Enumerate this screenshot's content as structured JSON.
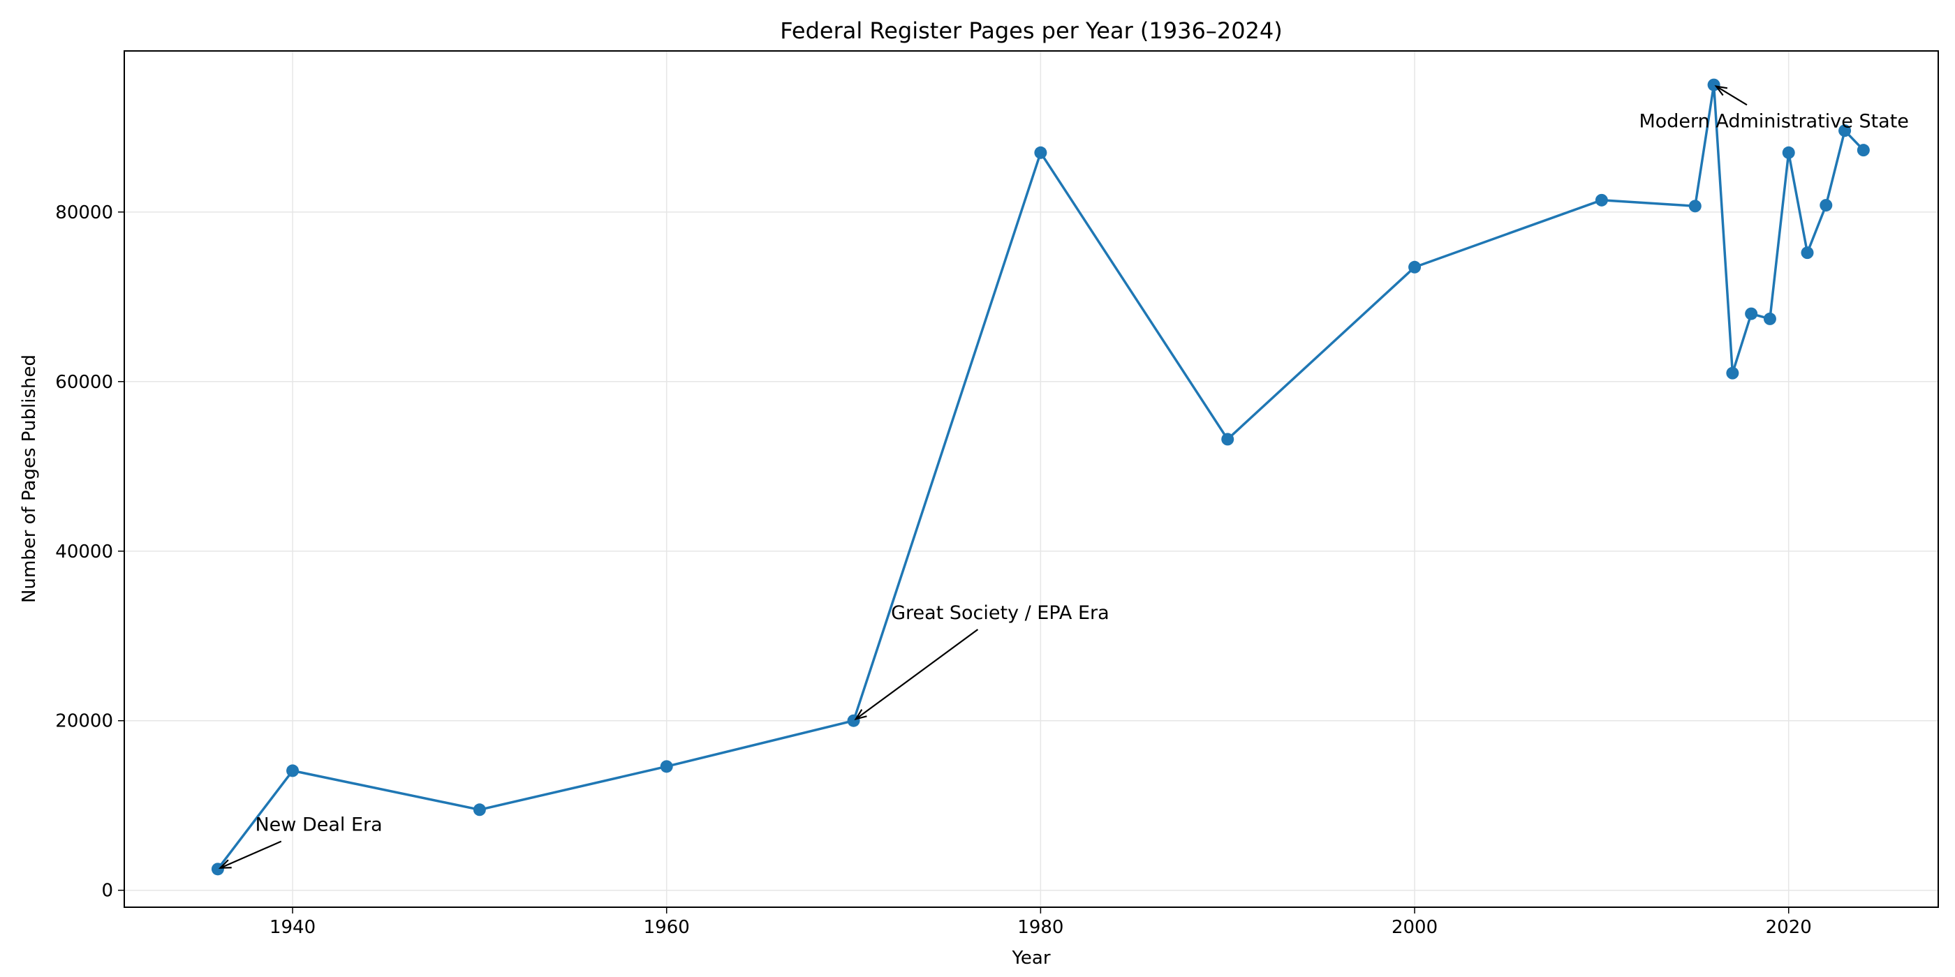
{
  "chart_data": {
    "type": "line",
    "title": "Federal Register Pages per Year (1936–2024)",
    "xlabel": "Year",
    "ylabel": "Number of Pages Published",
    "xlim": [
      1931,
      2028
    ],
    "ylim": [
      -2000,
      99000
    ],
    "xticks": [
      1940,
      1960,
      1980,
      2000,
      2020
    ],
    "yticks": [
      0,
      20000,
      40000,
      60000,
      80000
    ],
    "grid": true,
    "legend": "none",
    "color": "#1f77b4",
    "series": [
      {
        "x": [
          1936,
          1940,
          1950,
          1960,
          1970,
          1980,
          1990,
          2000,
          2010,
          2015,
          2016,
          2017,
          2018,
          2019,
          2020,
          2021,
          2022,
          2023,
          2024
        ],
        "y": [
          2500,
          14100,
          9500,
          14600,
          20000,
          87000,
          53200,
          73500,
          81400,
          80700,
          95000,
          61000,
          68000,
          67400,
          87000,
          75200,
          80800,
          89600,
          87300
        ]
      }
    ],
    "annotations": [
      {
        "text": "New Deal Era",
        "x": 1936,
        "y": 2500,
        "text_x": 1938,
        "text_y": 7000
      },
      {
        "text": "Great Society / EPA Era",
        "x": 1970,
        "y": 20000,
        "text_x": 1972,
        "text_y": 32000
      },
      {
        "text": "Modern Administrative State",
        "x": 2016,
        "y": 95000,
        "text_x": 2012,
        "text_y": 90000
      }
    ]
  }
}
